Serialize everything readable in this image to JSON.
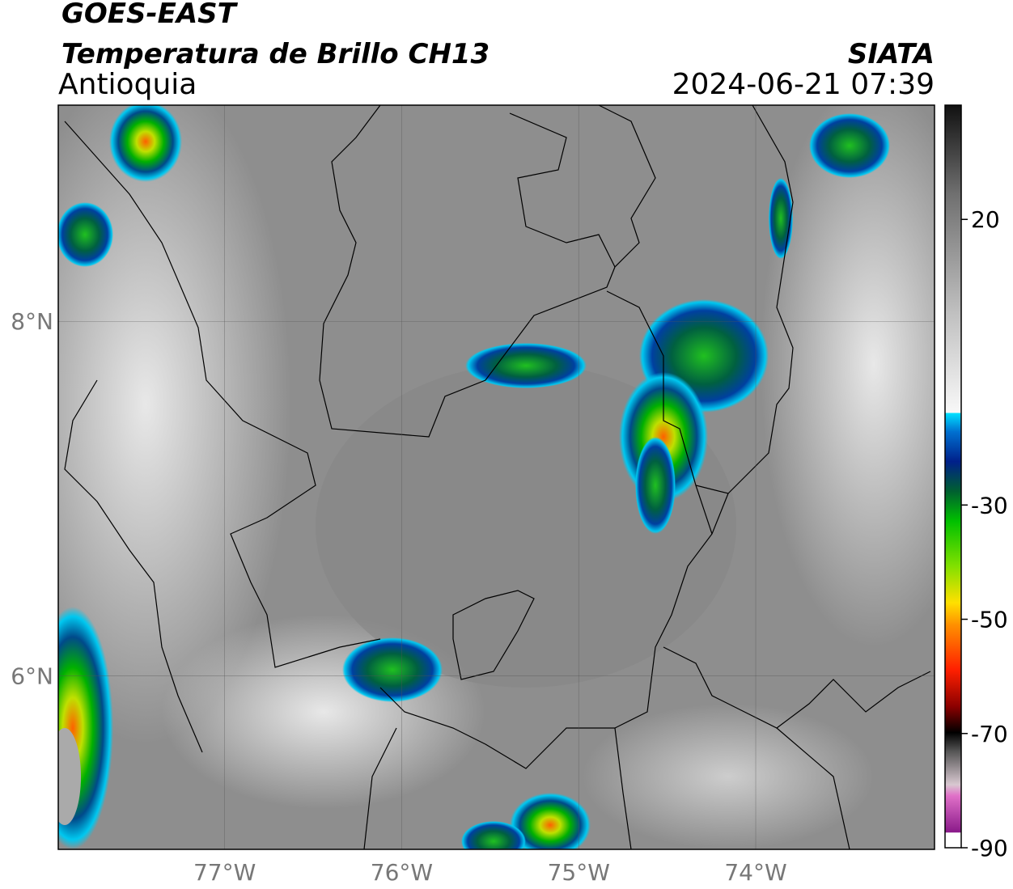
{
  "header": {
    "satellite": "GOES-EAST",
    "product": "Temperatura de Brillo CH13",
    "region": "Antioquia",
    "source": "SIATA",
    "datetime": "2024-06-21 07:39"
  },
  "map": {
    "xlim": [
      -77.94,
      -72.99
    ],
    "ylim": [
      5.02,
      9.22
    ],
    "xticks": [
      {
        "value": -77,
        "label": "77°W"
      },
      {
        "value": -76,
        "label": "76°W"
      },
      {
        "value": -75,
        "label": "75°W"
      },
      {
        "value": -74,
        "label": "74°W"
      }
    ],
    "yticks": [
      {
        "value": 8,
        "label": "8°N"
      },
      {
        "value": 6,
        "label": "6°N"
      }
    ],
    "grid": true
  },
  "colorbar": {
    "range": [
      -90,
      40
    ],
    "ticks": [
      20,
      -30,
      -50,
      -70,
      -90
    ]
  }
}
